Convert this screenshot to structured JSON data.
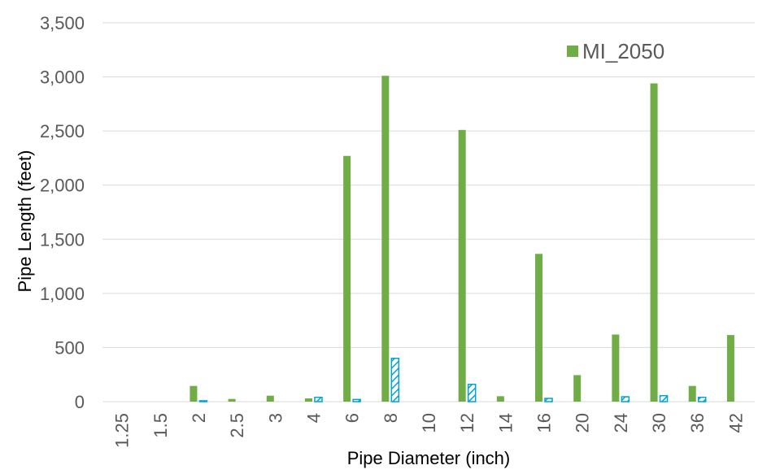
{
  "chart_data": {
    "type": "bar",
    "xlabel": "Pipe Diameter (inch)",
    "ylabel": "Pipe Length (feet)",
    "ylim": [
      0,
      3500
    ],
    "yticks": [
      "0",
      "500",
      "1,000",
      "1,500",
      "2,000",
      "2,500",
      "3,000",
      "3,500"
    ],
    "categories": [
      "1.25",
      "1.5",
      "2",
      "2.5",
      "3",
      "4",
      "6",
      "8",
      "10",
      "12",
      "14",
      "16",
      "20",
      "24",
      "30",
      "36",
      "42"
    ],
    "series": [
      {
        "name": "MI_2050",
        "color": "#70ad47",
        "pattern": "solid",
        "values": [
          0,
          0,
          145,
          25,
          55,
          30,
          2270,
          3010,
          0,
          2510,
          50,
          1365,
          245,
          620,
          2940,
          145,
          615
        ]
      },
      {
        "color": "#00a2d8",
        "pattern": "hatched",
        "values": [
          0,
          0,
          8,
          0,
          0,
          40,
          20,
          400,
          0,
          160,
          0,
          30,
          0,
          45,
          55,
          40,
          0
        ]
      }
    ],
    "grid": true,
    "legend_position": "top-right"
  }
}
